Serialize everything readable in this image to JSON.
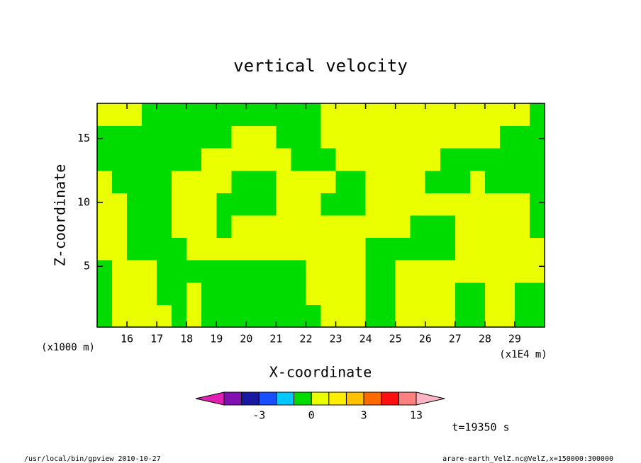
{
  "chart_data": {
    "type": "contour",
    "title": "vertical velocity",
    "x_label": "X-coordinate",
    "y_label": "Z-coordinate",
    "x_unit_label": "(x1E4 m)",
    "y_unit_label": "(x1000 m)",
    "time_label": "t=19350 s",
    "footer_left": "/usr/local/bin/gpview  2010-10-27",
    "footer_right": "arare-earth_VelZ.nc@VelZ,x=150000:300000",
    "xlim": [
      15,
      30
    ],
    "ylim": [
      0.25,
      17.75
    ],
    "xticks": [
      16,
      17,
      18,
      19,
      20,
      21,
      22,
      23,
      24,
      25,
      26,
      27,
      28,
      29
    ],
    "yticks": [
      5,
      10,
      15
    ],
    "x": [
      15.25,
      15.75,
      16.25,
      16.75,
      17.25,
      17.75,
      18.25,
      18.75,
      19.25,
      19.75,
      20.25,
      20.75,
      21.25,
      21.75,
      22.25,
      22.75,
      23.25,
      23.75,
      24.25,
      24.75,
      25.25,
      25.75,
      26.25,
      26.75,
      27.25,
      27.75,
      28.25,
      28.75,
      29.25,
      29.75
    ],
    "y": [
      1.125,
      2.875,
      4.625,
      6.375,
      8.125,
      9.875,
      11.625,
      13.375,
      15.125,
      16.875
    ],
    "z": [
      [
        -0.5,
        0.5,
        0.5,
        0.5,
        0.5,
        -0.5,
        0.5,
        -0.5,
        -0.5,
        -0.5,
        -0.5,
        -0.5,
        -0.5,
        -0.5,
        -0.5,
        0.5,
        0.5,
        0.5,
        -0.5,
        -0.5,
        0.5,
        0.5,
        0.5,
        0.5,
        -0.5,
        -0.5,
        0.5,
        0.5,
        -0.5,
        -0.5
      ],
      [
        -0.5,
        0.5,
        0.5,
        0.5,
        -0.5,
        -0.5,
        0.5,
        -0.5,
        -0.5,
        -0.5,
        -0.5,
        -0.5,
        -0.5,
        -0.5,
        0.5,
        0.5,
        0.5,
        0.5,
        -0.5,
        -0.5,
        0.5,
        0.5,
        0.5,
        0.5,
        -0.5,
        -0.5,
        0.5,
        0.5,
        -0.5,
        -0.5
      ],
      [
        -0.5,
        0.5,
        0.5,
        0.5,
        -0.5,
        -0.5,
        -0.5,
        -0.5,
        -0.5,
        -0.5,
        -0.5,
        -0.5,
        -0.5,
        -0.5,
        0.5,
        0.5,
        0.5,
        0.5,
        -0.5,
        -0.5,
        0.5,
        0.5,
        0.5,
        0.5,
        0.5,
        0.5,
        0.5,
        0.5,
        0.5,
        0.5
      ],
      [
        0.5,
        0.5,
        -0.5,
        -0.5,
        -0.5,
        -0.5,
        0.5,
        0.5,
        0.5,
        0.5,
        0.5,
        0.5,
        0.5,
        0.5,
        0.5,
        0.5,
        0.5,
        0.5,
        -0.5,
        -0.5,
        -0.5,
        -0.5,
        -0.5,
        -0.5,
        0.5,
        0.5,
        0.5,
        0.5,
        0.5,
        0.5
      ],
      [
        0.5,
        0.5,
        -0.5,
        -0.5,
        -0.5,
        0.5,
        0.5,
        0.5,
        -0.5,
        0.5,
        0.5,
        0.5,
        0.5,
        0.5,
        0.5,
        0.5,
        0.5,
        0.5,
        0.5,
        0.5,
        0.5,
        -0.5,
        -0.5,
        -0.5,
        0.5,
        0.5,
        0.5,
        0.5,
        0.5,
        -0.5
      ],
      [
        0.5,
        0.5,
        -0.5,
        -0.5,
        -0.5,
        0.5,
        0.5,
        0.5,
        -0.5,
        -0.5,
        -0.5,
        -0.5,
        0.5,
        0.5,
        0.5,
        -0.5,
        -0.5,
        -0.5,
        0.5,
        0.5,
        0.5,
        0.5,
        0.5,
        0.5,
        0.5,
        0.5,
        0.5,
        0.5,
        0.5,
        -0.5
      ],
      [
        0.5,
        -0.5,
        -0.5,
        -0.5,
        -0.5,
        0.5,
        0.5,
        0.5,
        0.5,
        -0.5,
        -0.5,
        -0.5,
        0.5,
        0.5,
        0.5,
        0.5,
        -0.5,
        -0.5,
        0.5,
        0.5,
        0.5,
        0.5,
        -0.5,
        -0.5,
        -0.5,
        0.5,
        -0.5,
        -0.5,
        -0.5,
        -0.5
      ],
      [
        -0.5,
        -0.5,
        -0.5,
        -0.5,
        -0.5,
        -0.5,
        -0.5,
        0.5,
        0.5,
        0.5,
        0.5,
        0.5,
        0.5,
        -0.5,
        -0.5,
        -0.5,
        0.5,
        0.5,
        0.5,
        0.5,
        0.5,
        0.5,
        0.5,
        -0.5,
        -0.5,
        -0.5,
        -0.5,
        -0.5,
        -0.5,
        -0.5
      ],
      [
        -0.5,
        -0.5,
        -0.5,
        -0.5,
        -0.5,
        -0.5,
        -0.5,
        -0.5,
        -0.5,
        0.5,
        0.5,
        0.5,
        -0.5,
        -0.5,
        -0.5,
        0.5,
        0.5,
        0.5,
        0.5,
        0.5,
        0.5,
        0.5,
        0.5,
        0.5,
        0.5,
        0.5,
        0.5,
        -0.5,
        -0.5,
        -0.5
      ],
      [
        0.5,
        0.5,
        0.5,
        -0.5,
        -0.5,
        -0.5,
        -0.5,
        -0.5,
        -0.5,
        -0.5,
        -0.5,
        -0.5,
        -0.5,
        -0.5,
        -0.5,
        0.5,
        0.5,
        0.5,
        0.5,
        0.5,
        0.5,
        0.5,
        0.5,
        0.5,
        0.5,
        0.5,
        0.5,
        0.5,
        0.5,
        -0.5
      ]
    ],
    "levels": [
      -10,
      -5,
      -3,
      -2,
      -1,
      0,
      1,
      2,
      3,
      5,
      10,
      13
    ],
    "colors": [
      "#e020b0",
      "#8010b0",
      "#1818a0",
      "#1850ff",
      "#00c8ff",
      "#00dc00",
      "#eaff00",
      "#ffee00",
      "#ffc000",
      "#ff6a00",
      "#ff1010",
      "#ff8080",
      "#ffb4c4"
    ],
    "colorbar_ticks": [
      -3,
      0,
      3,
      13
    ]
  }
}
